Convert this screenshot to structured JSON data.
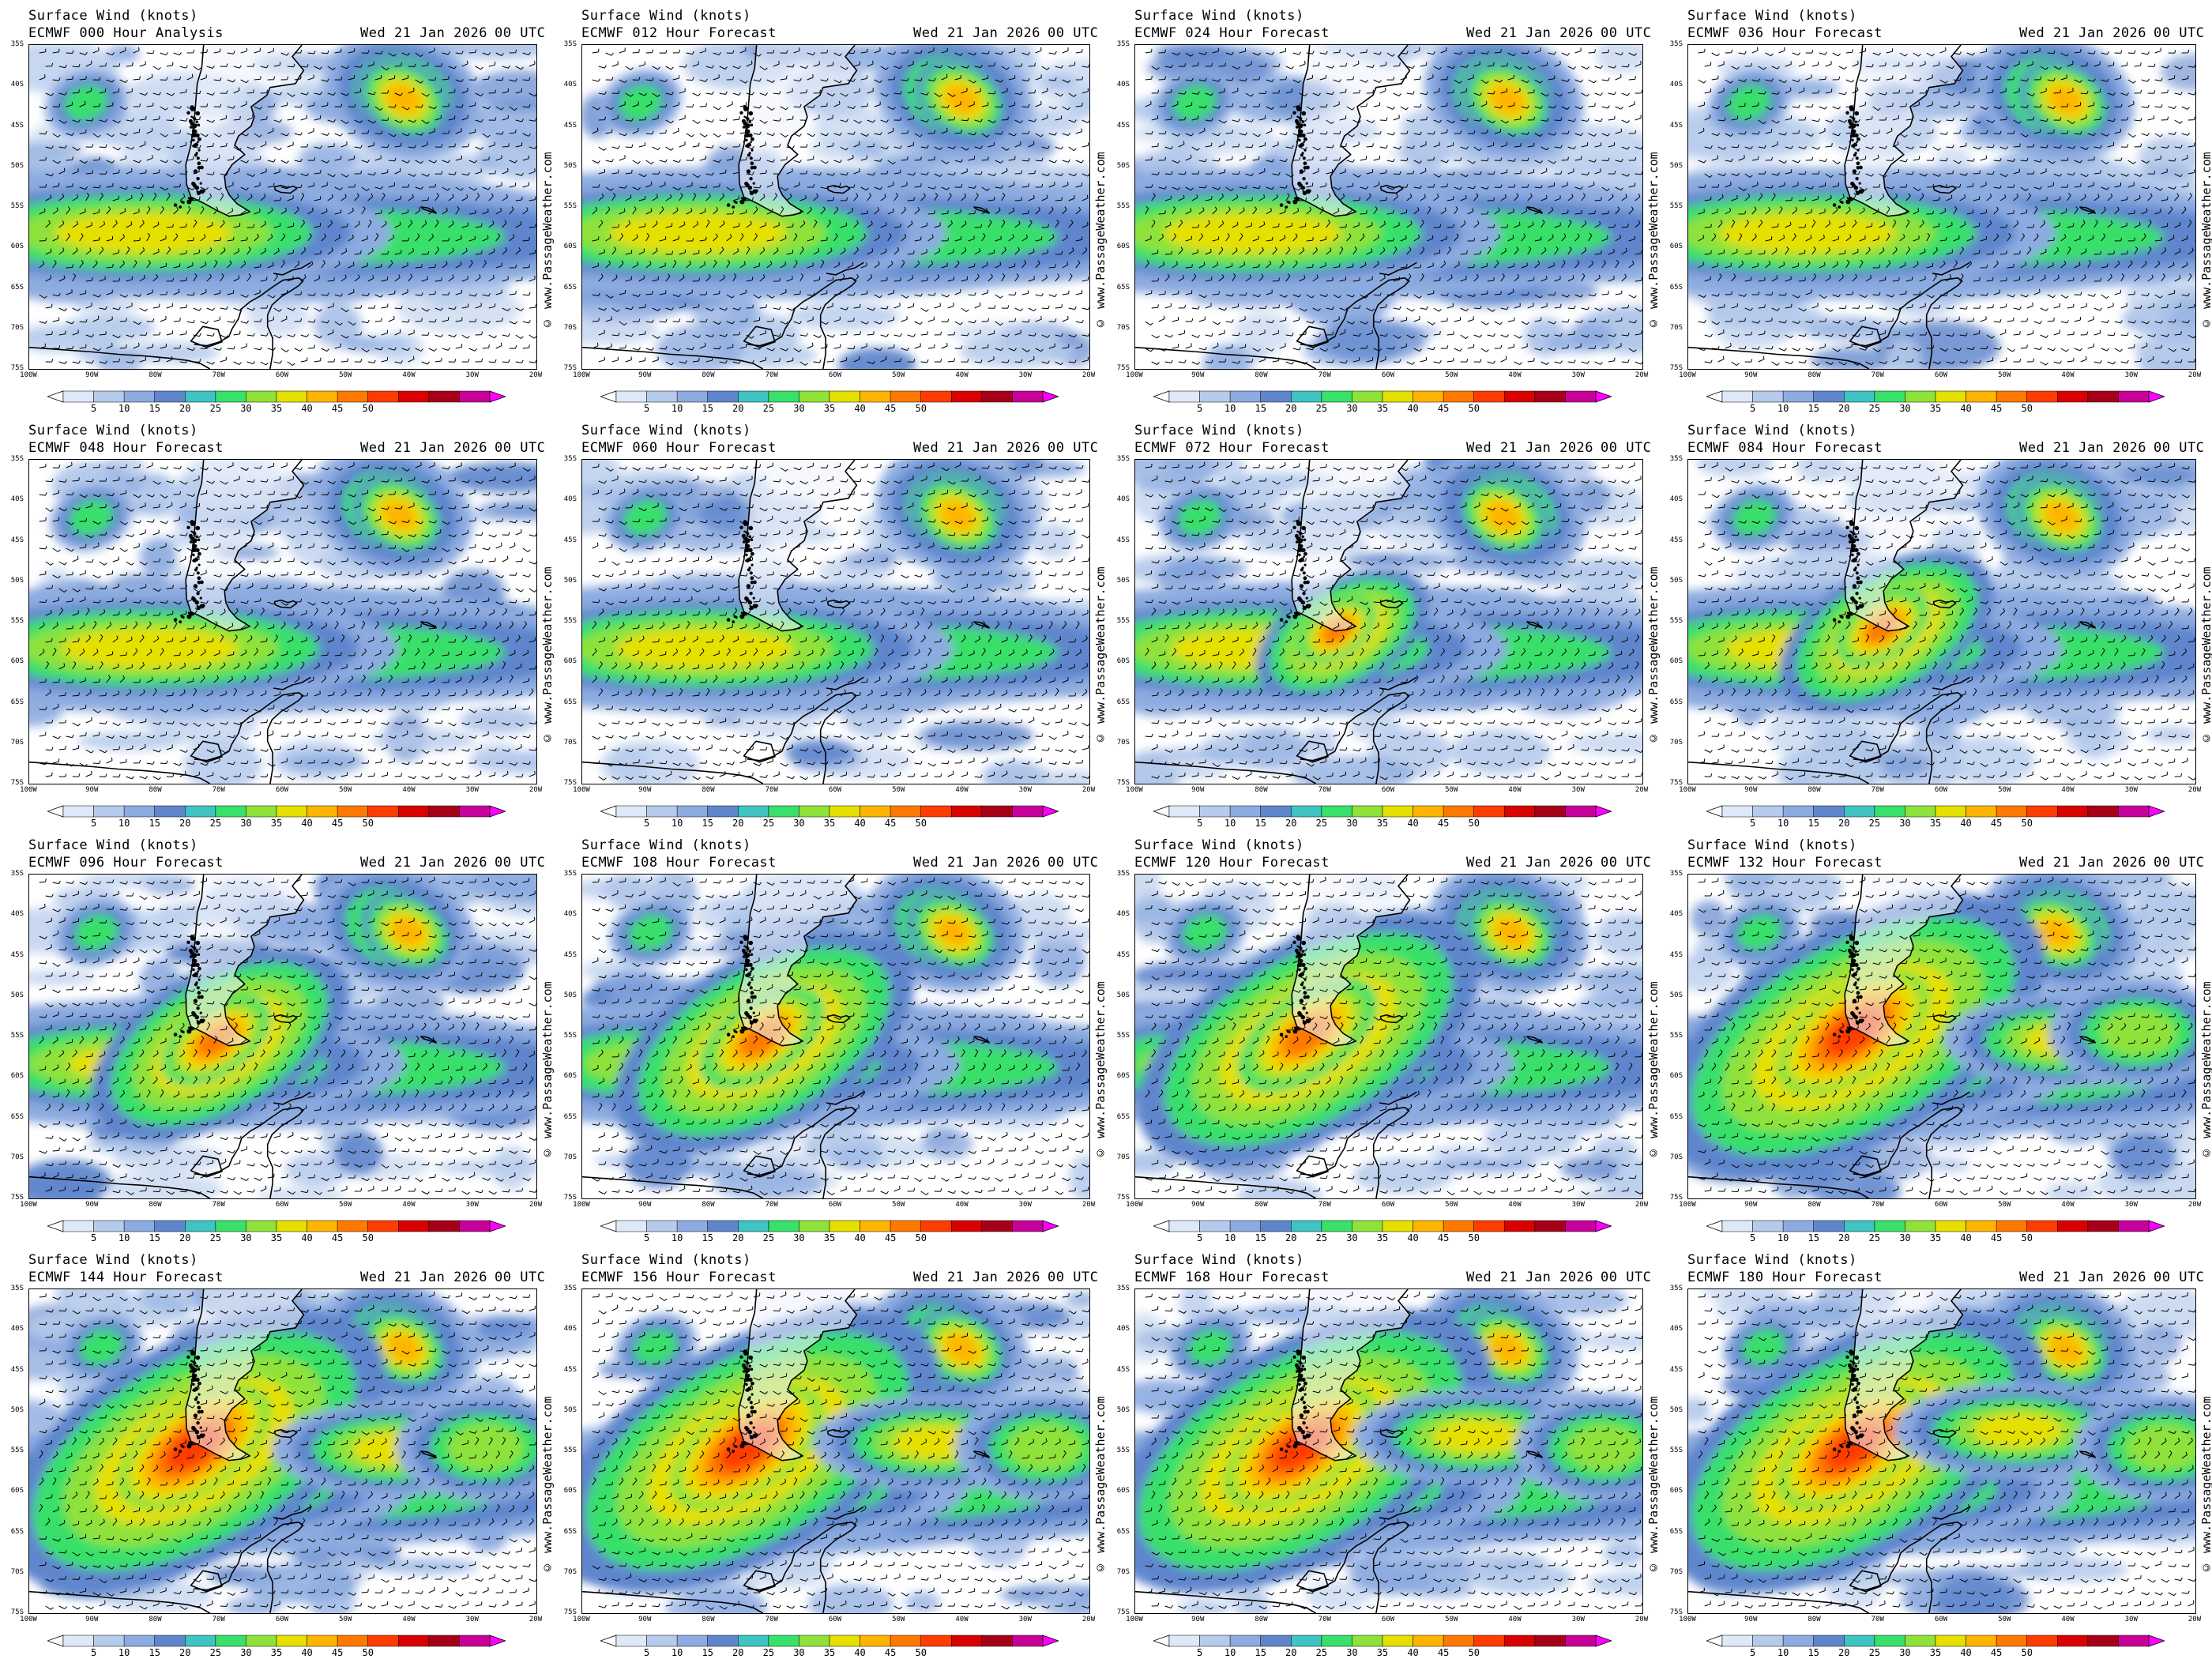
{
  "common": {
    "title": "Surface Wind (knots)",
    "date": "Wed 21 Jan 2026",
    "utc": "00 UTC",
    "watermark": "© www.PassageWeather.com",
    "lat_labels": [
      "35S",
      "40S",
      "45S",
      "50S",
      "55S",
      "60S",
      "65S",
      "70S",
      "75S"
    ],
    "lon_labels": [
      "100W",
      "90W",
      "80W",
      "70W",
      "60W",
      "50W",
      "40W",
      "30W",
      "20W"
    ],
    "colorbar": {
      "labels": [
        "5",
        "10",
        "15",
        "20",
        "25",
        "30",
        "35",
        "40",
        "45",
        "50"
      ],
      "colors": [
        "#ffffff",
        "#dfe8f7",
        "#b6cbec",
        "#8cabe0",
        "#5f86cd",
        "#3fc3c3",
        "#39e06b",
        "#8fe23a",
        "#e6e000",
        "#ffb400",
        "#ff7800",
        "#ff3c00",
        "#d80000",
        "#a60018",
        "#c8009a",
        "#ff00ff"
      ]
    }
  },
  "panels": [
    {
      "model_line": "ECMWF 000 Hour Analysis"
    },
    {
      "model_line": "ECMWF 012 Hour Forecast"
    },
    {
      "model_line": "ECMWF 024 Hour Forecast"
    },
    {
      "model_line": "ECMWF 036 Hour Forecast"
    },
    {
      "model_line": "ECMWF 048 Hour Forecast"
    },
    {
      "model_line": "ECMWF 060 Hour Forecast"
    },
    {
      "model_line": "ECMWF 072 Hour Forecast"
    },
    {
      "model_line": "ECMWF 084 Hour Forecast"
    },
    {
      "model_line": "ECMWF 096 Hour Forecast"
    },
    {
      "model_line": "ECMWF 108 Hour Forecast"
    },
    {
      "model_line": "ECMWF 120 Hour Forecast"
    },
    {
      "model_line": "ECMWF 132 Hour Forecast"
    },
    {
      "model_line": "ECMWF 144 Hour Forecast"
    },
    {
      "model_line": "ECMWF 156 Hour Forecast"
    },
    {
      "model_line": "ECMWF 168 Hour Forecast"
    },
    {
      "model_line": "ECMWF 180 Hour Forecast"
    }
  ]
}
